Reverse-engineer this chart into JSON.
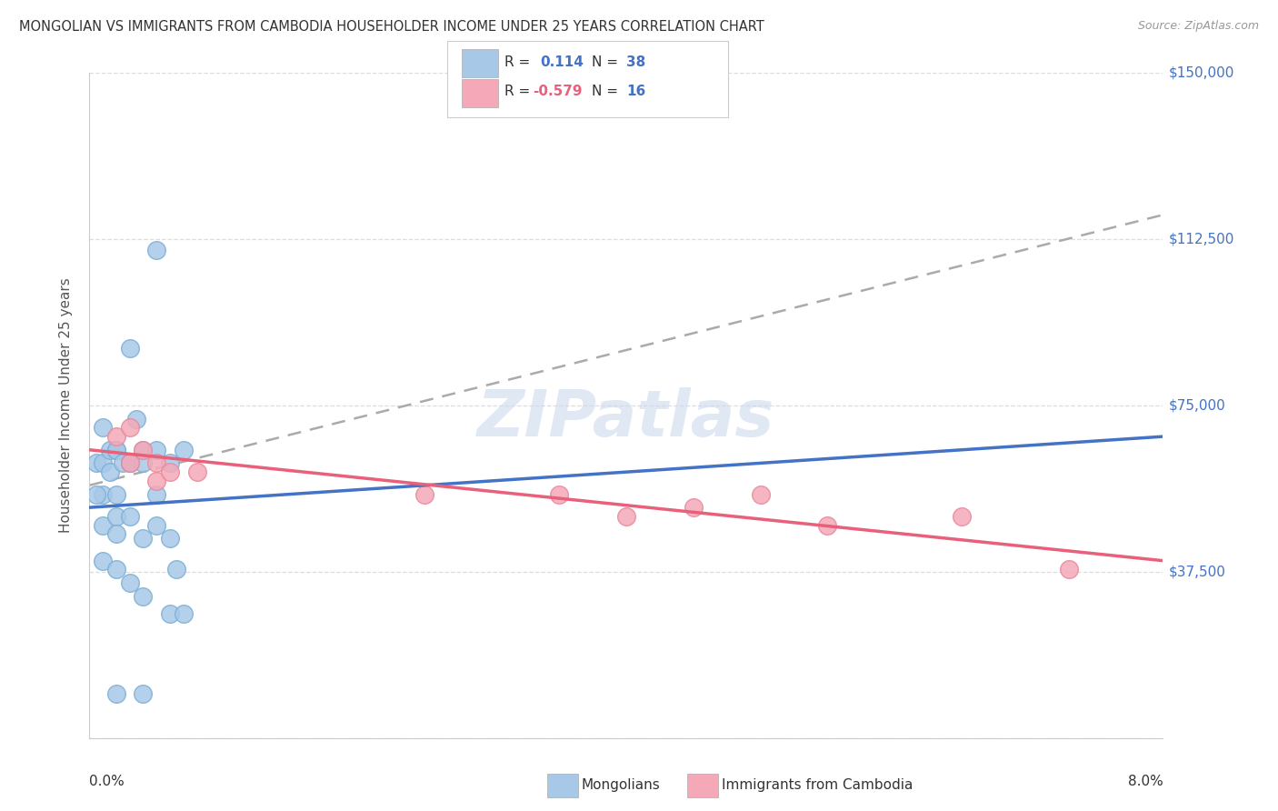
{
  "title": "MONGOLIAN VS IMMIGRANTS FROM CAMBODIA HOUSEHOLDER INCOME UNDER 25 YEARS CORRELATION CHART",
  "source": "Source: ZipAtlas.com",
  "ylabel": "Householder Income Under 25 years",
  "xlim": [
    0.0,
    0.08
  ],
  "ylim": [
    0,
    150000
  ],
  "ytick_vals": [
    0,
    37500,
    75000,
    112500,
    150000
  ],
  "ytick_labels_right": [
    "",
    "$37,500",
    "$75,000",
    "$112,500",
    "$150,000"
  ],
  "background_color": "#ffffff",
  "mongolian_color": "#a8c8e8",
  "mongolian_edge": "#7aafd4",
  "cambodia_color": "#f4a8b8",
  "cambodia_edge": "#e8889a",
  "mongolian_line_color": "#4472C4",
  "cambodia_line_color": "#e8607a",
  "dash_line_color": "#aaaaaa",
  "grid_color": "#dddddd",
  "right_label_color": "#4472C4",
  "title_color": "#333333",
  "source_color": "#999999",
  "watermark_color": "#ccd9ee",
  "legend_box_color": "#eeeeee",
  "mon_scatter_x": [
    0.0005,
    0.001,
    0.001,
    0.001,
    0.001,
    0.0015,
    0.0015,
    0.002,
    0.002,
    0.002,
    0.002,
    0.002,
    0.0025,
    0.003,
    0.003,
    0.003,
    0.003,
    0.0035,
    0.004,
    0.004,
    0.004,
    0.005,
    0.005,
    0.005,
    0.005,
    0.006,
    0.006,
    0.007,
    0.0065,
    0.0005,
    0.001,
    0.002,
    0.003,
    0.004,
    0.006,
    0.007,
    0.004,
    0.002
  ],
  "mon_scatter_y": [
    62000,
    70000,
    62000,
    55000,
    48000,
    65000,
    60000,
    65000,
    65000,
    55000,
    50000,
    46000,
    62000,
    88000,
    62000,
    62000,
    50000,
    72000,
    65000,
    62000,
    45000,
    110000,
    65000,
    55000,
    48000,
    62000,
    45000,
    65000,
    38000,
    55000,
    40000,
    38000,
    35000,
    32000,
    28000,
    28000,
    10000,
    10000
  ],
  "cam_scatter_x": [
    0.002,
    0.003,
    0.003,
    0.004,
    0.005,
    0.005,
    0.006,
    0.008,
    0.025,
    0.035,
    0.04,
    0.045,
    0.05,
    0.055,
    0.065,
    0.073
  ],
  "cam_scatter_y": [
    68000,
    70000,
    62000,
    65000,
    62000,
    58000,
    60000,
    60000,
    55000,
    55000,
    50000,
    52000,
    55000,
    48000,
    50000,
    38000
  ],
  "mon_line_x": [
    0.0,
    0.08
  ],
  "mon_line_y": [
    52000,
    68000
  ],
  "cam_line_x": [
    0.0,
    0.08
  ],
  "cam_line_y": [
    65000,
    40000
  ],
  "dash_line_x": [
    0.0,
    0.08
  ],
  "dash_line_y": [
    57000,
    118000
  ]
}
